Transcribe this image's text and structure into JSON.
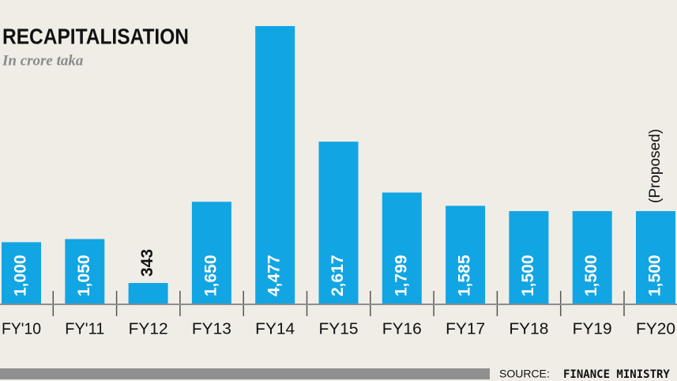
{
  "chart_data": {
    "type": "bar",
    "title": "RECAPITALISATION",
    "subtitle": "In crore taka",
    "categories": [
      "FY'10",
      "FY'11",
      "FY12",
      "FY13",
      "FY14",
      "FY15",
      "FY16",
      "FY17",
      "FY18",
      "FY19",
      "FY20"
    ],
    "values": [
      1000,
      1050,
      343,
      1650,
      4477,
      2617,
      1799,
      1585,
      1500,
      1500,
      1500
    ],
    "value_labels": [
      "1,000",
      "1,050",
      "343",
      "1,650",
      "4,477",
      "2,617",
      "1,799",
      "1,585",
      "1,500",
      "1,500",
      "1,500"
    ],
    "color": "#12a5e3",
    "annotation": "(Proposed)",
    "source_label": "SOURCE:",
    "source": "FINANCE MINISTRY"
  }
}
